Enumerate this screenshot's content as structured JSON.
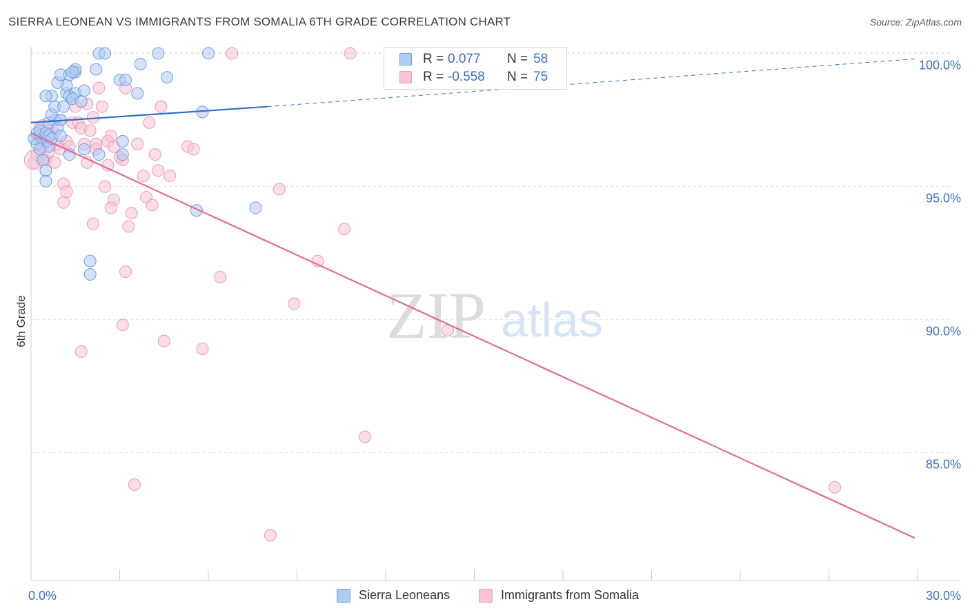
{
  "header": {
    "title": "SIERRA LEONEAN VS IMMIGRANTS FROM SOMALIA 6TH GRADE CORRELATION CHART",
    "source": "Source: ZipAtlas.com"
  },
  "watermark": {
    "zip": "ZIP",
    "atlas": "atlas"
  },
  "colors": {
    "blue_fill": "#aecbf3",
    "blue_stroke": "#6f9fe0",
    "blue_line": "#2f6fcc",
    "pink_fill": "#f8c3d4",
    "pink_stroke": "#ee9ab5",
    "pink_line": "#e26a96",
    "axis_text": "#3b6fc7",
    "grid": "#e3e3e3"
  },
  "legend_top": {
    "rows": [
      {
        "r_label": "R =",
        "r_value": "0.077",
        "n_label": "N =",
        "n_value": "58"
      },
      {
        "r_label": "R =",
        "r_value": "-0.558",
        "n_label": "N =",
        "n_value": "75"
      }
    ]
  },
  "legend_bottom": {
    "items": [
      {
        "label": "Sierra Leoneans"
      },
      {
        "label": "Immigrants from Somalia"
      }
    ]
  },
  "chart_data": {
    "type": "scatter",
    "title": "SIERRA LEONEAN VS IMMIGRANTS FROM SOMALIA 6TH GRADE CORRELATION CHART",
    "xlabel": "",
    "ylabel": "6th Grade",
    "xlim": [
      0,
      30
    ],
    "ylim": [
      80.2,
      100.4
    ],
    "x_tick_labels": [
      {
        "value": 0,
        "label": "0.0%"
      },
      {
        "value": 30,
        "label": "30.0%"
      }
    ],
    "x_minor_ticks": [
      3,
      6,
      9,
      12,
      15,
      18,
      21,
      24,
      27,
      30
    ],
    "y_ticks": [
      {
        "value": 100,
        "label": "100.0%"
      },
      {
        "value": 95,
        "label": "95.0%"
      },
      {
        "value": 90,
        "label": "90.0%"
      },
      {
        "value": 85,
        "label": "85.0%"
      }
    ],
    "grid": true,
    "legend_position": "top-center",
    "series": [
      {
        "name": "Sierra Leoneans",
        "color": "#aecbf3",
        "r": 0.077,
        "n": 58,
        "trend": {
          "x0": 0,
          "y0": 97.4,
          "x1": 8.0,
          "y1": 98.0,
          "dashed_to_x": 30,
          "dashed_to_y": 99.8
        },
        "points": [
          [
            0.1,
            96.8
          ],
          [
            0.2,
            97.0
          ],
          [
            0.3,
            96.9
          ],
          [
            0.3,
            97.1
          ],
          [
            0.4,
            96.8
          ],
          [
            0.5,
            96.7
          ],
          [
            0.2,
            96.6
          ],
          [
            0.5,
            97.0
          ],
          [
            0.6,
            96.9
          ],
          [
            0.4,
            96.0
          ],
          [
            0.5,
            95.6
          ],
          [
            0.5,
            95.2
          ],
          [
            0.6,
            96.5
          ],
          [
            0.7,
            96.8
          ],
          [
            0.8,
            97.5
          ],
          [
            0.6,
            97.4
          ],
          [
            0.7,
            97.7
          ],
          [
            0.8,
            98.0
          ],
          [
            0.9,
            97.2
          ],
          [
            1.0,
            96.9
          ],
          [
            1.0,
            97.5
          ],
          [
            1.1,
            98.0
          ],
          [
            0.7,
            98.4
          ],
          [
            0.5,
            98.4
          ],
          [
            1.2,
            98.5
          ],
          [
            1.3,
            98.4
          ],
          [
            1.2,
            98.8
          ],
          [
            0.9,
            98.9
          ],
          [
            1.5,
            98.5
          ],
          [
            1.4,
            98.3
          ],
          [
            1.7,
            98.2
          ],
          [
            1.8,
            98.6
          ],
          [
            1.0,
            99.2
          ],
          [
            1.3,
            99.2
          ],
          [
            1.5,
            99.3
          ],
          [
            1.5,
            99.4
          ],
          [
            1.4,
            99.3
          ],
          [
            2.2,
            99.4
          ],
          [
            2.3,
            100.0
          ],
          [
            2.5,
            100.0
          ],
          [
            3.0,
            99.0
          ],
          [
            3.2,
            99.0
          ],
          [
            3.7,
            99.6
          ],
          [
            4.3,
            100.0
          ],
          [
            4.6,
            99.1
          ],
          [
            6.0,
            100.0
          ],
          [
            3.6,
            98.5
          ],
          [
            5.8,
            97.8
          ],
          [
            3.1,
            96.7
          ],
          [
            3.1,
            96.2
          ],
          [
            1.3,
            96.2
          ],
          [
            1.8,
            96.4
          ],
          [
            2.3,
            96.2
          ],
          [
            5.6,
            94.1
          ],
          [
            7.6,
            94.2
          ],
          [
            2.0,
            92.2
          ],
          [
            2.0,
            91.7
          ],
          [
            0.3,
            96.4
          ]
        ]
      },
      {
        "name": "Immigrants from Somalia",
        "color": "#f8c3d4",
        "r": -0.558,
        "n": 75,
        "trend": {
          "x0": 0,
          "y0": 97.0,
          "x1": 29.9,
          "y1": 81.8
        },
        "points": [
          [
            0.1,
            95.9
          ],
          [
            0.2,
            96.2
          ],
          [
            0.3,
            96.8
          ],
          [
            0.3,
            97.2
          ],
          [
            0.4,
            96.5
          ],
          [
            0.4,
            97.3
          ],
          [
            0.5,
            97.0
          ],
          [
            0.5,
            96.0
          ],
          [
            0.6,
            97.1
          ],
          [
            0.6,
            96.3
          ],
          [
            0.7,
            96.8
          ],
          [
            0.8,
            95.9
          ],
          [
            0.8,
            97.0
          ],
          [
            0.9,
            96.6
          ],
          [
            1.0,
            97.5
          ],
          [
            1.0,
            96.4
          ],
          [
            1.1,
            95.1
          ],
          [
            1.1,
            94.4
          ],
          [
            1.2,
            94.8
          ],
          [
            1.2,
            96.7
          ],
          [
            1.3,
            96.5
          ],
          [
            1.4,
            97.4
          ],
          [
            1.5,
            98.0
          ],
          [
            1.6,
            97.4
          ],
          [
            1.7,
            97.2
          ],
          [
            1.8,
            96.6
          ],
          [
            1.9,
            95.9
          ],
          [
            2.0,
            97.1
          ],
          [
            2.1,
            97.6
          ],
          [
            2.2,
            96.6
          ],
          [
            2.3,
            98.7
          ],
          [
            2.4,
            98.0
          ],
          [
            2.5,
            95.0
          ],
          [
            2.6,
            96.7
          ],
          [
            2.6,
            95.8
          ],
          [
            2.8,
            96.5
          ],
          [
            2.8,
            94.5
          ],
          [
            2.7,
            94.2
          ],
          [
            2.1,
            93.6
          ],
          [
            3.0,
            96.1
          ],
          [
            3.1,
            96.0
          ],
          [
            3.2,
            98.7
          ],
          [
            3.3,
            93.5
          ],
          [
            3.4,
            94.0
          ],
          [
            3.6,
            96.6
          ],
          [
            3.8,
            95.4
          ],
          [
            3.9,
            94.6
          ],
          [
            4.0,
            97.4
          ],
          [
            4.1,
            94.3
          ],
          [
            4.2,
            96.2
          ],
          [
            4.3,
            95.6
          ],
          [
            4.4,
            98.0
          ],
          [
            4.7,
            95.4
          ],
          [
            5.3,
            96.5
          ],
          [
            5.5,
            96.4
          ],
          [
            6.8,
            100.0
          ],
          [
            10.8,
            100.0
          ],
          [
            2.2,
            96.4
          ],
          [
            1.9,
            98.1
          ],
          [
            8.4,
            94.9
          ],
          [
            10.6,
            93.4
          ],
          [
            9.7,
            92.2
          ],
          [
            6.4,
            91.6
          ],
          [
            8.9,
            90.6
          ],
          [
            3.2,
            91.8
          ],
          [
            3.1,
            89.8
          ],
          [
            4.5,
            89.2
          ],
          [
            5.8,
            88.9
          ],
          [
            1.7,
            88.8
          ],
          [
            14.1,
            89.6
          ],
          [
            11.3,
            85.6
          ],
          [
            3.5,
            83.8
          ],
          [
            8.1,
            81.9
          ],
          [
            27.2,
            83.7
          ],
          [
            2.7,
            96.9
          ]
        ]
      }
    ]
  }
}
